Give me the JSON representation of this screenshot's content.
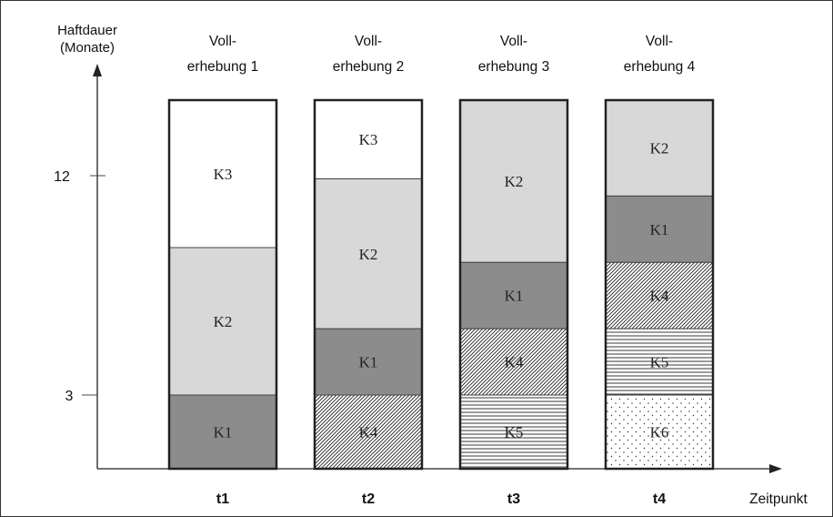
{
  "chart_data": {
    "type": "bar",
    "subtype": "stacked-cohort",
    "y_axis": {
      "label_line1": "Haftdauer",
      "label_line2": "(Monate)",
      "ticks": [
        3,
        12
      ]
    },
    "x_axis": {
      "label": "Zeitpunkt",
      "categories": [
        "t1",
        "t2",
        "t3",
        "t4"
      ]
    },
    "column_headers": [
      [
        "Voll-",
        "erhebung 1"
      ],
      [
        "Voll-",
        "erhebung 2"
      ],
      [
        "Voll-",
        "erhebung 3"
      ],
      [
        "Voll-",
        "erhebung 4"
      ]
    ],
    "stacks": [
      [
        {
          "label": "K1",
          "from": 0,
          "to": 3,
          "style": "dark"
        },
        {
          "label": "K2",
          "from": 3,
          "to": 9,
          "style": "light"
        },
        {
          "label": "K3",
          "from": 9,
          "to": 15,
          "style": "white"
        }
      ],
      [
        {
          "label": "K4",
          "from": 0,
          "to": 3,
          "style": "diag"
        },
        {
          "label": "K1",
          "from": 3,
          "to": 5.7,
          "style": "dark"
        },
        {
          "label": "K2",
          "from": 5.7,
          "to": 11.8,
          "style": "light"
        },
        {
          "label": "K3",
          "from": 11.8,
          "to": 15,
          "style": "white"
        }
      ],
      [
        {
          "label": "K5",
          "from": 0,
          "to": 3,
          "style": "horiz"
        },
        {
          "label": "K4",
          "from": 3,
          "to": 5.7,
          "style": "diag"
        },
        {
          "label": "K1",
          "from": 5.7,
          "to": 8.4,
          "style": "dark"
        },
        {
          "label": "K2",
          "from": 8.4,
          "to": 15,
          "style": "light"
        }
      ],
      [
        {
          "label": "K6",
          "from": 0,
          "to": 3,
          "style": "dots"
        },
        {
          "label": "K5",
          "from": 3,
          "to": 5.7,
          "style": "horiz"
        },
        {
          "label": "K4",
          "from": 5.7,
          "to": 8.4,
          "style": "diag"
        },
        {
          "label": "K1",
          "from": 8.4,
          "to": 11.1,
          "style": "dark"
        },
        {
          "label": "K2",
          "from": 11.1,
          "to": 15,
          "style": "light"
        }
      ]
    ],
    "ylim": [
      0,
      15
    ],
    "colors": {
      "dark": "#8c8c8c",
      "light": "#d8d8d8",
      "white": "#ffffff",
      "border": "#222222",
      "axis": "#222222"
    }
  }
}
